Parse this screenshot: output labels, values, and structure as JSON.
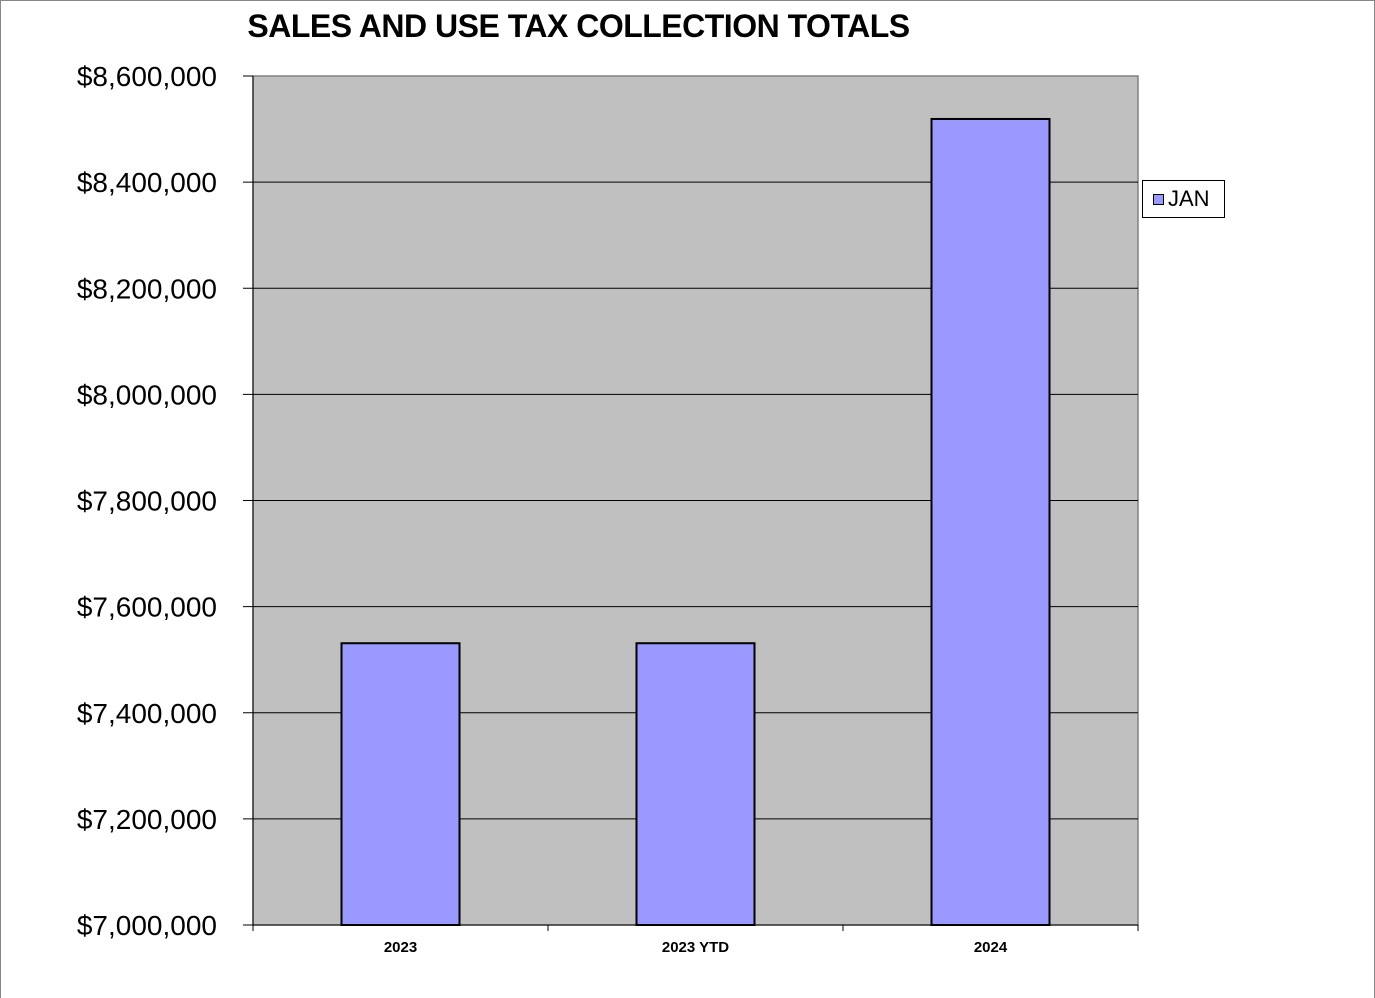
{
  "chart_data": {
    "type": "bar",
    "title": "SALES AND USE TAX COLLECTION TOTALS",
    "categories": [
      "2023",
      "2023 YTD",
      "2024"
    ],
    "series": [
      {
        "name": "JAN",
        "values": [
          7531000,
          7531000,
          8519000
        ]
      }
    ],
    "ylim": [
      7000000,
      8600000
    ],
    "yticks": [
      7000000,
      7200000,
      7400000,
      7600000,
      7800000,
      8000000,
      8200000,
      8400000,
      8600000
    ],
    "ytick_labels": [
      "$7,000,000",
      "$7,200,000",
      "$7,400,000",
      "$7,600,000",
      "$7,800,000",
      "$8,000,000",
      "$8,200,000",
      "$8,400,000",
      "$8,600,000"
    ],
    "xlabel": "",
    "ylabel": "",
    "grid": true,
    "legend_position": "right",
    "colors": {
      "bar": "#9999ff",
      "plot_background": "#c0c0c0",
      "gridline": "#000000"
    }
  }
}
